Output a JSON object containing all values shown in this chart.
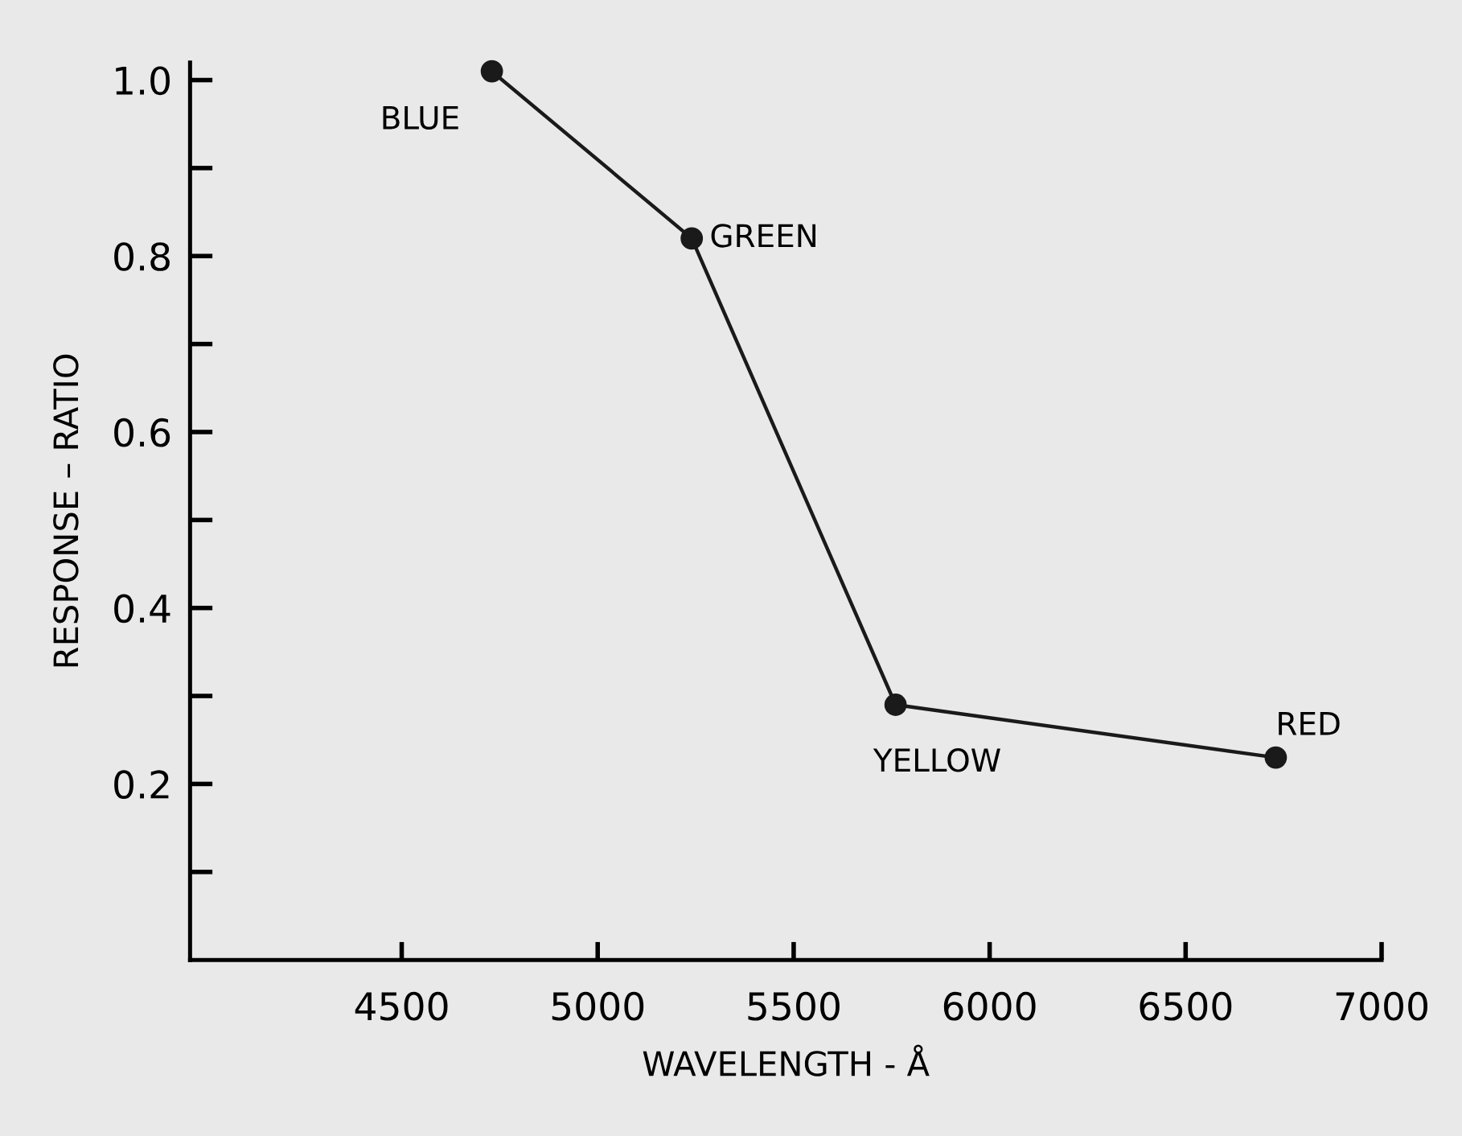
{
  "chart_data": {
    "type": "line",
    "xlabel": "WAVELENGTH - Å",
    "ylabel": "RESPONSE – RATIO",
    "x": [
      4730,
      5240,
      5760,
      6730
    ],
    "series": [
      {
        "color": "#1a1a1a",
        "values": [
          1.01,
          0.82,
          0.29,
          0.23
        ]
      }
    ],
    "marker": "circle",
    "line_style": "solid",
    "grid": false,
    "legend": false,
    "xlim": [
      3960,
      7000
    ],
    "ylim": [
      0,
      1.02
    ],
    "xticks": [
      4500,
      5000,
      5500,
      6000,
      6500,
      7000
    ],
    "yticks": [
      {
        "value": 0.1,
        "label": null
      },
      0.2,
      {
        "value": 0.3,
        "label": null
      },
      0.4,
      {
        "value": 0.5,
        "label": null
      },
      0.6,
      {
        "value": 0.7,
        "label": null
      },
      0.8,
      {
        "value": 0.9,
        "label": null
      },
      {
        "value": 1.0,
        "label": "1.0"
      }
    ],
    "annotations": [
      {
        "text": "BLUE",
        "x": 4730,
        "y": 1.01
      },
      {
        "text": "GREEN",
        "x": 5240,
        "y": 0.82
      },
      {
        "text": "YELLOW",
        "x": 5760,
        "y": 0.29
      },
      {
        "text": "RED",
        "x": 6730,
        "y": 0.23
      }
    ]
  }
}
